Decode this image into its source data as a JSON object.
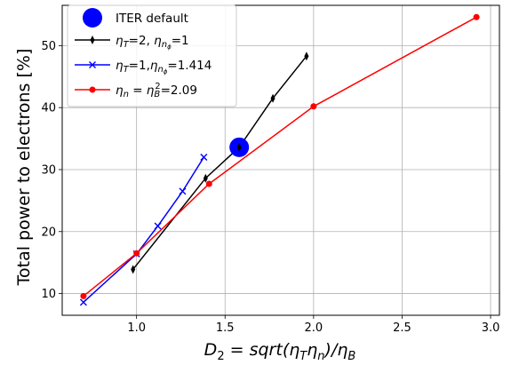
{
  "chart_data": {
    "type": "line",
    "title": "",
    "xlabel": {
      "prefix": "D",
      "prefix_sub": "2",
      "mid": " = sqrt(η",
      "sub1": "T",
      "eta2": "η",
      "sub2": "n",
      "close": ")/η",
      "sub3": "B"
    },
    "ylabel": "Total power to electrons [%]",
    "xlim": [
      0.58,
      3.05
    ],
    "ylim": [
      6.5,
      56.5
    ],
    "xticks": [
      1.0,
      1.5,
      2.0,
      2.5,
      3.0
    ],
    "xtick_labels": [
      "1.0",
      "1.5",
      "2.0",
      "2.5",
      "3.0"
    ],
    "yticks": [
      10,
      20,
      30,
      40,
      50
    ],
    "ytick_labels": [
      "10",
      "20",
      "30",
      "40",
      "50"
    ],
    "grid": true,
    "legend_position": "top-left",
    "series": [
      {
        "legend": {
          "pre": "η",
          "sub1": "T",
          "mid": "=2, ",
          "eta2": "η",
          "sub2": "n",
          "subsub": "ϕ",
          "post": "=1"
        },
        "color": "#000000",
        "marker": "thin-diamond",
        "x": [
          0.98,
          1.39,
          1.58,
          1.77,
          1.96
        ],
        "y": [
          13.9,
          28.6,
          33.6,
          41.5,
          48.3
        ]
      },
      {
        "legend": {
          "pre": "η",
          "sub1": "T",
          "mid": "=1,",
          "eta2": "η",
          "sub2": "n",
          "subsub": "ϕ",
          "post": "=1.414"
        },
        "color": "#0000ff",
        "marker": "x",
        "x": [
          0.7,
          1.0,
          1.12,
          1.26,
          1.38
        ],
        "y": [
          8.6,
          16.4,
          20.9,
          26.5,
          32.0
        ]
      },
      {
        "legend": {
          "pre": "η",
          "sub1": "n",
          "mid": " = η",
          "sub2": "B",
          "sup": "2",
          "post": "=2.09"
        },
        "color": "#ff0000",
        "marker": "circle",
        "x": [
          0.7,
          1.0,
          1.41,
          2.0,
          2.92
        ],
        "y": [
          9.6,
          16.5,
          27.7,
          40.2,
          54.6
        ]
      }
    ],
    "highlight": {
      "name": "ITER default",
      "color": "#0000ff",
      "x": 1.58,
      "y": 33.6
    }
  }
}
